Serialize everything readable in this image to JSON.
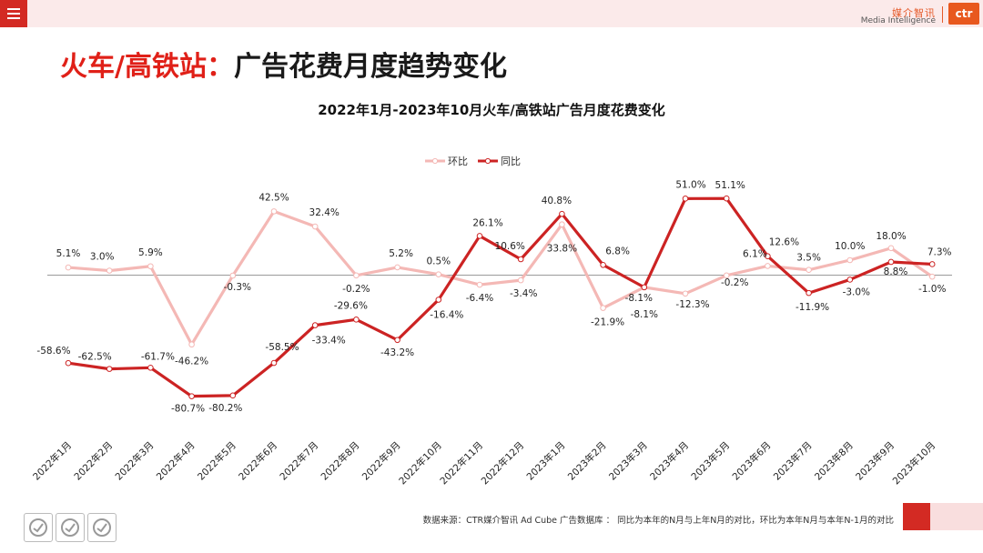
{
  "header": {
    "logo_cn": "媒介智讯",
    "logo_en": "Media Intelligence",
    "logo_box": "ctr"
  },
  "slide": {
    "title_red": "火车/高铁站：",
    "title_dark": "广告花费月度趋势变化"
  },
  "footer": {
    "note": "数据来源：CTR媒介智讯 Ad Cube 广告数据库 ： 同比为本年的N月与上年N月的对比，环比为本年N月与本年N-1月的对比"
  },
  "colors": {
    "mom": "#f4b8b5",
    "yoy": "#cc2323",
    "accent": "#e02018"
  },
  "chart_data": {
    "type": "line",
    "title": "2022年1月-2023年10月火车/高铁站广告月度花费变化",
    "legend_position": "top-center",
    "grid": false,
    "categories": [
      "2022年1月",
      "2022年2月",
      "2022年3月",
      "2022年4月",
      "2022年5月",
      "2022年6月",
      "2022年7月",
      "2022年8月",
      "2022年9月",
      "2022年10月",
      "2022年11月",
      "2022年12月",
      "2023年1月",
      "2023年2月",
      "2023年3月",
      "2023年4月",
      "2023年5月",
      "2023年6月",
      "2023年7月",
      "2023年8月",
      "2023年9月",
      "2023年10月"
    ],
    "ylim": [
      -105,
      85
    ],
    "series": [
      {
        "name": "环比",
        "color": "#f4b8b5",
        "values": [
          5.1,
          3.0,
          5.9,
          -46.2,
          -0.3,
          42.5,
          32.4,
          -0.2,
          5.2,
          0.5,
          -6.4,
          -3.4,
          33.8,
          -21.9,
          -8.1,
          -12.3,
          -0.2,
          6.1,
          3.5,
          10.0,
          18.0,
          -1.0
        ],
        "labels": [
          "5.1%",
          "3.0%",
          "5.9%",
          "-46.2%",
          "-0.3%",
          "42.5%",
          "32.4%",
          "-0.2%",
          "5.2%",
          "0.5%",
          "-6.4%",
          "-3.4%",
          "33.8%",
          "-21.9%",
          "-8.1%",
          "-12.3%",
          "-0.2%",
          "6.1%",
          "3.5%",
          "10.0%",
          "18.0%",
          "-1.0%"
        ]
      },
      {
        "name": "同比",
        "color": "#cc2323",
        "values": [
          -58.6,
          -62.5,
          -61.7,
          -80.7,
          -80.2,
          -58.5,
          -33.4,
          -29.6,
          -43.2,
          -16.4,
          26.1,
          10.6,
          40.8,
          6.8,
          -8.1,
          51.0,
          51.1,
          12.6,
          -11.9,
          -3.0,
          8.8,
          7.3
        ],
        "labels": [
          "-58.6%",
          "-62.5%",
          "-61.7%",
          "-80.7%",
          "-80.2%",
          "-58.5%",
          "-33.4%",
          "-29.6%",
          "-43.2%",
          "-16.4%",
          "26.1%",
          "10.6%",
          "40.8%",
          "6.8%",
          "-8.1%",
          "51.0%",
          "51.1%",
          "12.6%",
          "-11.9%",
          "-3.0%",
          "8.8%",
          "7.3%"
        ]
      }
    ]
  }
}
